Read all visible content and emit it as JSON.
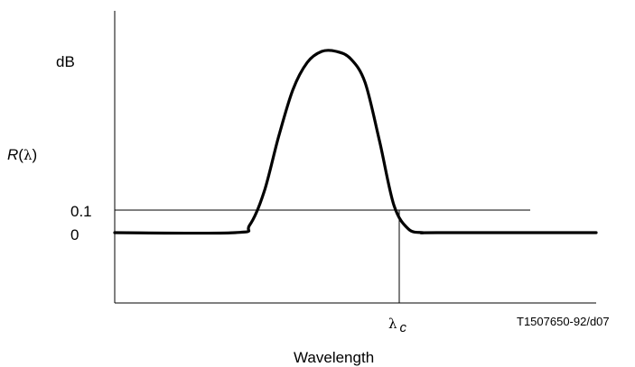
{
  "chart_data": {
    "type": "line",
    "title": "",
    "ylabel": {
      "main": "R",
      "paren_open": "(",
      "symbol": "λ",
      "paren_close": ")"
    },
    "yunit": "dB",
    "xlabel": "Wavelength",
    "x_marker": {
      "symbol": "λ",
      "subscript": "c"
    },
    "threshold": 0.1,
    "yticks": [
      "0.1",
      "0"
    ],
    "figure_id": "T1507650-92/d07",
    "grid": false,
    "series": [
      {
        "x": [
          0.0,
          0.25,
          0.28,
          0.31,
          0.34,
          0.37,
          0.4,
          0.43,
          0.46,
          0.49,
          0.52,
          0.55,
          0.58,
          0.61,
          0.64,
          0.67,
          1.0
        ],
        "y": [
          0.0,
          0.0,
          0.04,
          0.22,
          0.52,
          0.78,
          0.93,
          0.99,
          0.99,
          0.95,
          0.82,
          0.5,
          0.15,
          0.02,
          0.0,
          0.0,
          0.0
        ]
      }
    ]
  }
}
